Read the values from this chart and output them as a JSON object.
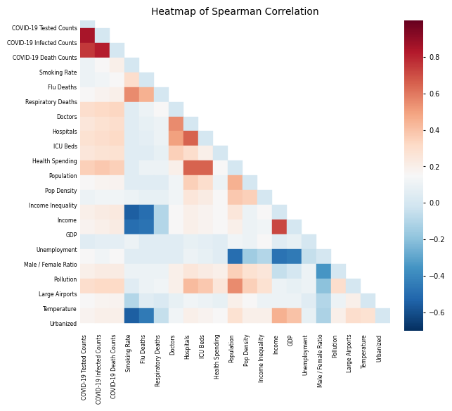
{
  "title": "Heatmap of Spearman Correlation",
  "labels": [
    "COVID-19 Tested Counts",
    "COVID-19 Infected Counts",
    "COVID-19 Death Counts",
    "Smoking Rate",
    "Flu Deaths",
    "Respiratory Deaths",
    "Doctors",
    "Hospitals",
    "ICU Beds",
    "Health Spending",
    "Population",
    "Pop Density",
    "Income Inequality",
    "Income",
    "GDP",
    "Unemployment",
    "Male / Female Ratio",
    "Pollution",
    "Large Airports",
    "Temperature",
    "Urbanized"
  ],
  "corr_matrix": [
    [
      0.0,
      0.85,
      0.75,
      0.1,
      0.1,
      0.15,
      0.3,
      0.25,
      0.28,
      0.25,
      0.35,
      0.15,
      0.1,
      0.2,
      0.18,
      0.05,
      0.15,
      0.2,
      0.3,
      0.15,
      0.18
    ],
    [
      0.85,
      0.0,
      0.82,
      0.15,
      0.12,
      0.18,
      0.32,
      0.28,
      0.3,
      0.27,
      0.38,
      0.17,
      0.12,
      0.22,
      0.2,
      0.07,
      0.12,
      0.22,
      0.32,
      0.17,
      0.2
    ],
    [
      0.75,
      0.82,
      0.0,
      0.2,
      0.15,
      0.2,
      0.33,
      0.3,
      0.32,
      0.28,
      0.35,
      0.18,
      0.12,
      0.23,
      0.22,
      0.07,
      0.15,
      0.22,
      0.32,
      0.18,
      0.2
    ],
    [
      0.1,
      0.15,
      0.2,
      0.0,
      0.3,
      0.55,
      0.05,
      0.05,
      0.05,
      0.05,
      0.05,
      0.05,
      0.1,
      -0.55,
      -0.5,
      0.1,
      0.05,
      0.1,
      0.05,
      -0.1,
      -0.55
    ],
    [
      0.1,
      0.12,
      0.15,
      0.3,
      0.0,
      0.45,
      0.1,
      0.08,
      0.07,
      0.05,
      0.1,
      0.05,
      0.08,
      -0.5,
      -0.48,
      0.05,
      0.05,
      0.1,
      0.1,
      0.05,
      -0.45
    ],
    [
      0.15,
      0.18,
      0.2,
      0.55,
      0.45,
      0.0,
      0.15,
      0.1,
      0.1,
      0.08,
      0.1,
      0.05,
      0.08,
      -0.1,
      -0.1,
      0.05,
      0.05,
      0.1,
      0.12,
      0.02,
      -0.05
    ],
    [
      0.3,
      0.32,
      0.33,
      0.05,
      0.1,
      0.15,
      0.0,
      0.55,
      0.5,
      0.35,
      0.2,
      0.12,
      0.12,
      0.15,
      0.15,
      0.05,
      0.05,
      0.2,
      0.2,
      0.08,
      0.12
    ],
    [
      0.25,
      0.28,
      0.3,
      0.05,
      0.08,
      0.1,
      0.55,
      0.0,
      0.65,
      0.3,
      0.65,
      0.35,
      0.25,
      0.2,
      0.2,
      0.08,
      0.1,
      0.25,
      0.42,
      0.12,
      0.2
    ],
    [
      0.28,
      0.3,
      0.32,
      0.05,
      0.07,
      0.1,
      0.5,
      0.65,
      0.0,
      0.2,
      0.65,
      0.3,
      0.22,
      0.18,
      0.18,
      0.07,
      0.08,
      0.22,
      0.38,
      0.1,
      0.18
    ],
    [
      0.25,
      0.27,
      0.28,
      0.05,
      0.05,
      0.08,
      0.35,
      0.3,
      0.2,
      0.0,
      0.15,
      0.1,
      0.15,
      0.15,
      0.15,
      0.05,
      0.05,
      0.2,
      0.25,
      0.08,
      0.15
    ],
    [
      0.35,
      0.38,
      0.35,
      0.05,
      0.1,
      0.1,
      0.2,
      0.65,
      0.65,
      0.15,
      0.0,
      0.45,
      0.38,
      0.25,
      0.2,
      0.12,
      -0.5,
      0.35,
      0.55,
      0.2,
      0.28
    ],
    [
      0.15,
      0.17,
      0.18,
      0.05,
      0.05,
      0.05,
      0.12,
      0.35,
      0.3,
      0.1,
      0.45,
      0.0,
      0.35,
      0.1,
      0.1,
      0.1,
      -0.15,
      0.28,
      0.35,
      0.15,
      0.2
    ],
    [
      0.1,
      0.12,
      0.12,
      0.1,
      0.08,
      0.08,
      0.12,
      0.25,
      0.22,
      0.15,
      0.38,
      0.35,
      0.0,
      0.15,
      0.12,
      0.15,
      -0.1,
      0.25,
      0.28,
      0.1,
      0.2
    ],
    [
      0.2,
      0.22,
      0.23,
      -0.55,
      -0.5,
      -0.1,
      0.15,
      0.2,
      0.18,
      0.15,
      0.25,
      0.1,
      0.15,
      0.0,
      0.72,
      0.05,
      -0.48,
      -0.05,
      0.1,
      0.1,
      0.45
    ],
    [
      0.18,
      0.2,
      0.22,
      -0.5,
      -0.48,
      -0.1,
      0.15,
      0.2,
      0.18,
      0.15,
      0.2,
      0.1,
      0.12,
      0.72,
      0.0,
      0.08,
      -0.45,
      0.0,
      0.08,
      0.1,
      0.4
    ],
    [
      0.05,
      0.07,
      0.07,
      0.1,
      0.05,
      0.05,
      0.05,
      0.08,
      0.07,
      0.05,
      0.12,
      0.1,
      0.15,
      0.05,
      0.08,
      0.0,
      -0.05,
      0.1,
      0.1,
      0.05,
      0.08
    ],
    [
      0.15,
      0.12,
      0.15,
      0.05,
      0.05,
      0.05,
      0.05,
      0.1,
      0.08,
      0.05,
      -0.5,
      -0.15,
      -0.1,
      -0.48,
      -0.45,
      -0.05,
      0.0,
      -0.35,
      -0.2,
      -0.1,
      -0.12
    ],
    [
      0.2,
      0.22,
      0.22,
      0.1,
      0.1,
      0.1,
      0.2,
      0.25,
      0.22,
      0.2,
      0.35,
      0.28,
      0.25,
      -0.05,
      0.0,
      0.1,
      -0.35,
      0.0,
      0.3,
      0.1,
      0.2
    ],
    [
      0.3,
      0.32,
      0.32,
      0.05,
      0.1,
      0.12,
      0.2,
      0.42,
      0.38,
      0.25,
      0.55,
      0.35,
      0.28,
      0.1,
      0.08,
      0.1,
      -0.2,
      0.3,
      0.0,
      0.2,
      0.3
    ],
    [
      0.15,
      0.17,
      0.18,
      -0.1,
      0.05,
      0.02,
      0.08,
      0.12,
      0.1,
      0.08,
      0.2,
      0.15,
      0.1,
      0.1,
      0.1,
      0.05,
      -0.1,
      0.1,
      0.2,
      0.0,
      0.28
    ],
    [
      0.18,
      0.2,
      0.2,
      -0.55,
      -0.45,
      -0.05,
      0.12,
      0.2,
      0.18,
      0.15,
      0.28,
      0.2,
      0.2,
      0.45,
      0.4,
      0.08,
      -0.12,
      0.2,
      0.3,
      0.28,
      0.0
    ]
  ],
  "vmin": -0.7,
  "vmax": 1.0,
  "cmap": "RdBu_r",
  "figsize": [
    6.4,
    5.72
  ],
  "dpi": 100,
  "title_fontsize": 10,
  "tick_fontsize": 5.5,
  "cbar_tick_fontsize": 7,
  "cbar_ticks": [
    -0.6,
    -0.4,
    -0.2,
    0.0,
    0.2,
    0.4,
    0.6,
    0.8
  ]
}
